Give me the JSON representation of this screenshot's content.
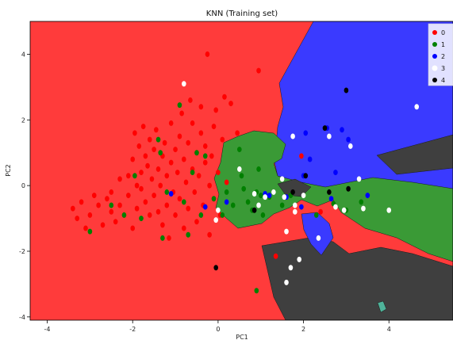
{
  "chart_data": {
    "type": "scatter",
    "title": "KNN (Training set)",
    "xlabel": "PC1",
    "ylabel": "PC2",
    "xlim": [
      -4.4,
      5.5
    ],
    "ylim": [
      -4.1,
      5.0
    ],
    "xticks": [
      -4,
      -2,
      0,
      2,
      4
    ],
    "yticks": [
      -4,
      -2,
      0,
      2,
      4
    ],
    "grid": false,
    "legend_placement": "top-right",
    "region_colors": {
      "0": "#ff3b3b",
      "1": "#3a9a36",
      "2": "#3a3aff",
      "4": "#3f3f3f",
      "3": "#4fb39a"
    },
    "series": [
      {
        "name": "0",
        "color": "#ff0000",
        "points": [
          [
            -3.4,
            -0.7
          ],
          [
            -3.3,
            -1.0
          ],
          [
            -3.2,
            -0.5
          ],
          [
            -3.1,
            -1.3
          ],
          [
            -3.0,
            -0.9
          ],
          [
            -2.9,
            -0.3
          ],
          [
            -2.8,
            -0.6
          ],
          [
            -2.7,
            -1.2
          ],
          [
            -2.6,
            -0.4
          ],
          [
            -2.5,
            -0.8
          ],
          [
            -2.5,
            -0.2
          ],
          [
            -2.4,
            -1.1
          ],
          [
            -2.3,
            0.2
          ],
          [
            -2.3,
            -0.6
          ],
          [
            -2.2,
            -0.9
          ],
          [
            -2.1,
            0.3
          ],
          [
            -2.1,
            -0.3
          ],
          [
            -2.0,
            0.8
          ],
          [
            -2.0,
            -1.3
          ],
          [
            -1.95,
            1.6
          ],
          [
            -1.9,
            0.0
          ],
          [
            -1.9,
            -0.7
          ],
          [
            -1.85,
            1.2
          ],
          [
            -1.8,
            0.4
          ],
          [
            -1.8,
            -0.1
          ],
          [
            -1.75,
            1.8
          ],
          [
            -1.7,
            0.9
          ],
          [
            -1.7,
            -0.5
          ],
          [
            -1.65,
            0.6
          ],
          [
            -1.6,
            1.4
          ],
          [
            -1.6,
            -0.9
          ],
          [
            -1.55,
            0.2
          ],
          [
            -1.5,
            1.1
          ],
          [
            -1.5,
            -0.3
          ],
          [
            -1.45,
            1.7
          ],
          [
            -1.4,
            0.5
          ],
          [
            -1.4,
            -0.8
          ],
          [
            -1.35,
            0.0
          ],
          [
            -1.3,
            0.9
          ],
          [
            -1.3,
            -1.2
          ],
          [
            -1.25,
            1.3
          ],
          [
            -1.2,
            0.3
          ],
          [
            -1.2,
            -0.6
          ],
          [
            -1.15,
            -1.6
          ],
          [
            -1.1,
            0.7
          ],
          [
            -1.1,
            1.9
          ],
          [
            -1.05,
            -0.2
          ],
          [
            -1.0,
            1.1
          ],
          [
            -1.0,
            -0.9
          ],
          [
            -0.95,
            0.4
          ],
          [
            -0.9,
            1.5
          ],
          [
            -0.9,
            -0.4
          ],
          [
            -0.85,
            2.2
          ],
          [
            -0.8,
            0.8
          ],
          [
            -0.8,
            -1.3
          ],
          [
            -0.75,
            0.1
          ],
          [
            -0.7,
            1.3
          ],
          [
            -0.7,
            -0.7
          ],
          [
            -0.65,
            2.6
          ],
          [
            -0.6,
            0.5
          ],
          [
            -0.6,
            1.9
          ],
          [
            -0.55,
            -0.2
          ],
          [
            -0.5,
            1.0
          ],
          [
            -0.5,
            -1.1
          ],
          [
            -0.45,
            0.3
          ],
          [
            -0.4,
            1.6
          ],
          [
            -0.4,
            2.4
          ],
          [
            -0.35,
            -0.6
          ],
          [
            -0.3,
            0.7
          ],
          [
            -0.3,
            1.2
          ],
          [
            -0.25,
            4.0
          ],
          [
            -0.2,
            0.0
          ],
          [
            -0.2,
            -1.5
          ],
          [
            -0.15,
            0.9
          ],
          [
            -0.1,
            1.8
          ],
          [
            -0.1,
            -0.4
          ],
          [
            -0.05,
            2.3
          ],
          [
            0.0,
            0.4
          ],
          [
            0.05,
            -0.9
          ],
          [
            0.1,
            1.4
          ],
          [
            0.15,
            2.7
          ],
          [
            0.2,
            0.1
          ],
          [
            0.3,
            2.5
          ],
          [
            0.45,
            1.6
          ],
          [
            0.95,
            3.5
          ],
          [
            1.35,
            -2.15
          ],
          [
            1.95,
            0.9
          ],
          [
            2.4,
            -0.8
          ]
        ]
      },
      {
        "name": "1",
        "color": "#008000",
        "points": [
          [
            -3.0,
            -1.4
          ],
          [
            -2.5,
            -0.6
          ],
          [
            -2.2,
            -0.9
          ],
          [
            -1.95,
            0.3
          ],
          [
            -1.8,
            -1.0
          ],
          [
            -1.4,
            1.4
          ],
          [
            -1.35,
            1.0
          ],
          [
            -1.3,
            -1.6
          ],
          [
            -1.2,
            -0.2
          ],
          [
            -0.9,
            2.45
          ],
          [
            -0.8,
            -0.5
          ],
          [
            -0.7,
            -1.5
          ],
          [
            -0.6,
            0.4
          ],
          [
            -0.5,
            1.0
          ],
          [
            -0.4,
            -0.9
          ],
          [
            -0.3,
            0.9
          ],
          [
            -0.1,
            -0.4
          ],
          [
            0.1,
            -0.9
          ],
          [
            0.2,
            -0.2
          ],
          [
            0.35,
            -0.6
          ],
          [
            0.5,
            1.1
          ],
          [
            0.55,
            0.3
          ],
          [
            0.6,
            -0.1
          ],
          [
            0.7,
            -0.5
          ],
          [
            0.8,
            -0.75
          ],
          [
            0.9,
            -0.2
          ],
          [
            1.0,
            -0.3
          ],
          [
            1.05,
            -0.9
          ],
          [
            1.2,
            -0.35
          ],
          [
            1.5,
            -0.6
          ],
          [
            1.7,
            -0.3
          ],
          [
            2.3,
            -0.9
          ],
          [
            2.7,
            -0.55
          ],
          [
            3.0,
            -0.75
          ],
          [
            3.35,
            -0.5
          ],
          [
            0.9,
            -3.2
          ],
          [
            0.95,
            0.5
          ]
        ]
      },
      {
        "name": "2",
        "color": "#0000ff",
        "points": [
          [
            -1.1,
            -0.25
          ],
          [
            -0.3,
            -0.65
          ],
          [
            0.2,
            -0.5
          ],
          [
            1.1,
            -0.25
          ],
          [
            1.2,
            -0.3
          ],
          [
            1.6,
            -0.35
          ],
          [
            1.95,
            -0.65
          ],
          [
            2.0,
            0.3
          ],
          [
            2.05,
            1.6
          ],
          [
            2.15,
            0.8
          ],
          [
            2.55,
            1.75
          ],
          [
            2.65,
            -0.4
          ],
          [
            2.75,
            0.4
          ],
          [
            2.9,
            1.7
          ],
          [
            3.05,
            1.4
          ],
          [
            3.3,
            0.2
          ],
          [
            3.5,
            -0.3
          ]
        ]
      },
      {
        "name": "3",
        "color": "#ffffff",
        "points": [
          [
            -0.8,
            3.1
          ],
          [
            -0.05,
            -1.05
          ],
          [
            0.0,
            -0.75
          ],
          [
            0.5,
            0.5
          ],
          [
            0.85,
            -0.25
          ],
          [
            0.95,
            -0.6
          ],
          [
            1.1,
            -0.35
          ],
          [
            1.3,
            -0.2
          ],
          [
            1.5,
            0.2
          ],
          [
            1.55,
            -0.35
          ],
          [
            1.6,
            -1.4
          ],
          [
            1.7,
            -2.5
          ],
          [
            1.75,
            1.5
          ],
          [
            1.8,
            -0.8
          ],
          [
            1.9,
            -2.25
          ],
          [
            2.0,
            -0.3
          ],
          [
            2.35,
            -1.6
          ],
          [
            2.6,
            1.5
          ],
          [
            2.75,
            -0.65
          ],
          [
            2.95,
            -0.75
          ],
          [
            3.1,
            1.2
          ],
          [
            3.3,
            0.2
          ],
          [
            3.4,
            -0.7
          ],
          [
            4.0,
            -0.75
          ],
          [
            4.65,
            2.4
          ],
          [
            1.6,
            -2.95
          ],
          [
            1.8,
            -0.6
          ]
        ]
      },
      {
        "name": "4",
        "color": "#000000",
        "points": [
          [
            -0.05,
            -2.5
          ],
          [
            0.85,
            -0.75
          ],
          [
            1.75,
            -0.2
          ],
          [
            2.05,
            0.3
          ],
          [
            2.5,
            1.75
          ],
          [
            2.6,
            -0.2
          ],
          [
            3.0,
            2.9
          ],
          [
            3.05,
            -0.1
          ]
        ]
      }
    ]
  }
}
